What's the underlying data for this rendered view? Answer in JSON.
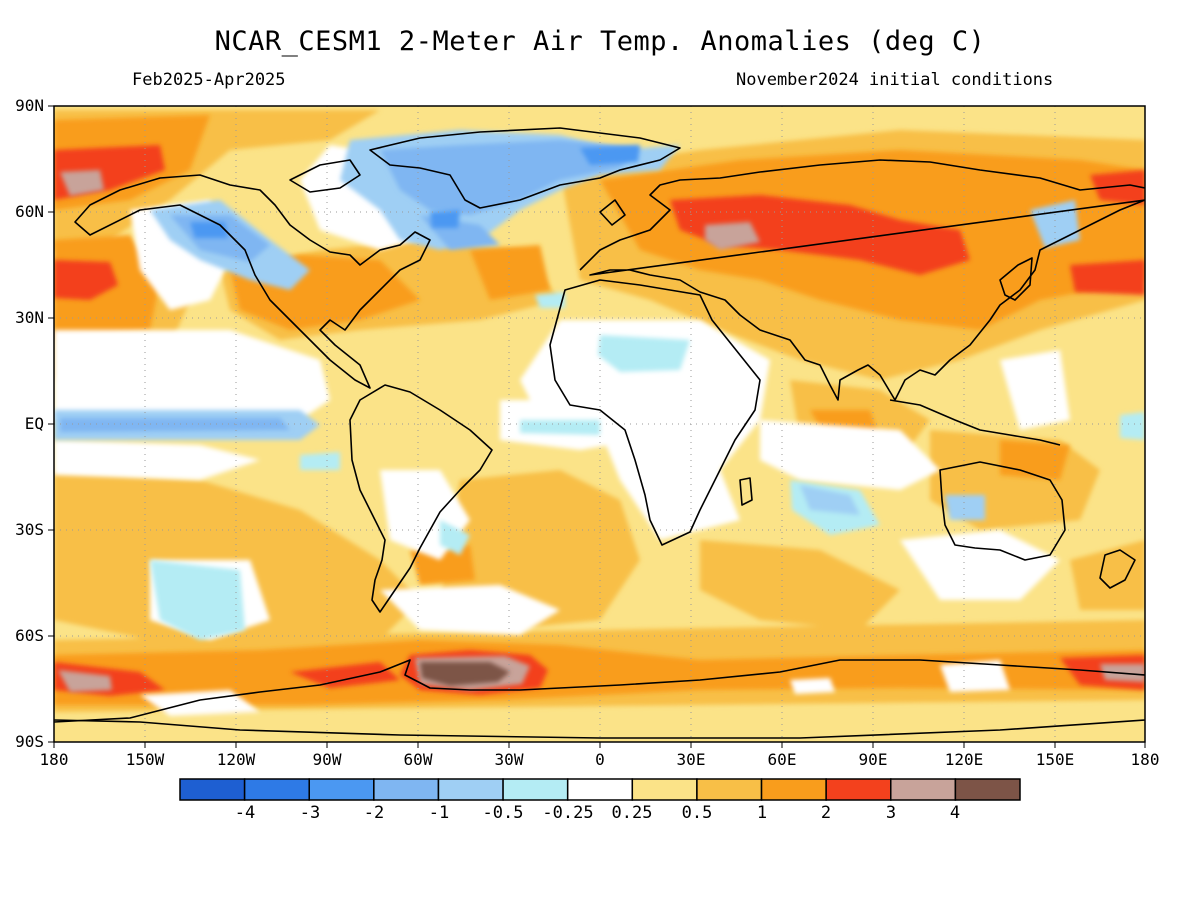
{
  "header": {
    "title": "NCAR_CESM1 2-Meter Air Temp. Anomalies (deg C)",
    "period": "Feb2025-Apr2025",
    "init": "November2024 initial conditions"
  },
  "axes": {
    "lat_labels": [
      "90N",
      "60N",
      "30N",
      "EQ",
      "30S",
      "60S",
      "90S"
    ],
    "lon_labels": [
      "180",
      "150W",
      "120W",
      "90W",
      "60W",
      "30W",
      "0",
      "30E",
      "60E",
      "90E",
      "120E",
      "150E",
      "180"
    ],
    "lat_range": [
      -90,
      90
    ],
    "lon_range": [
      -180,
      180
    ],
    "grid": "dotted every 30 deg"
  },
  "colorbar": {
    "labels": [
      "-4",
      "-3",
      "-2",
      "-1",
      "-0.5",
      "-0.25",
      "0.25",
      "0.5",
      "1",
      "2",
      "3",
      "4"
    ],
    "colors": [
      "#1e5fd2",
      "#2e7ae6",
      "#4b98f2",
      "#7fb6f2",
      "#9fcff4",
      "#b4ecf4",
      "#ffffff",
      "#fbe388",
      "#f8bf47",
      "#f99d1c",
      "#f3411d",
      "#c8a39a",
      "#7d5447"
    ]
  },
  "map_features": [
    {
      "label": "Arctic Canada / Greenland cold anomaly",
      "value": -1.5
    },
    {
      "label": "Russia / Eurasia warm anomaly",
      "value": 2.5
    },
    {
      "label": "Weddell Sea warm maximum",
      "value": 4.5
    },
    {
      "label": "Equatorial Pacific cool band",
      "value": -0.5
    },
    {
      "label": "Southern Ocean warm ring",
      "value": 1.5
    }
  ]
}
